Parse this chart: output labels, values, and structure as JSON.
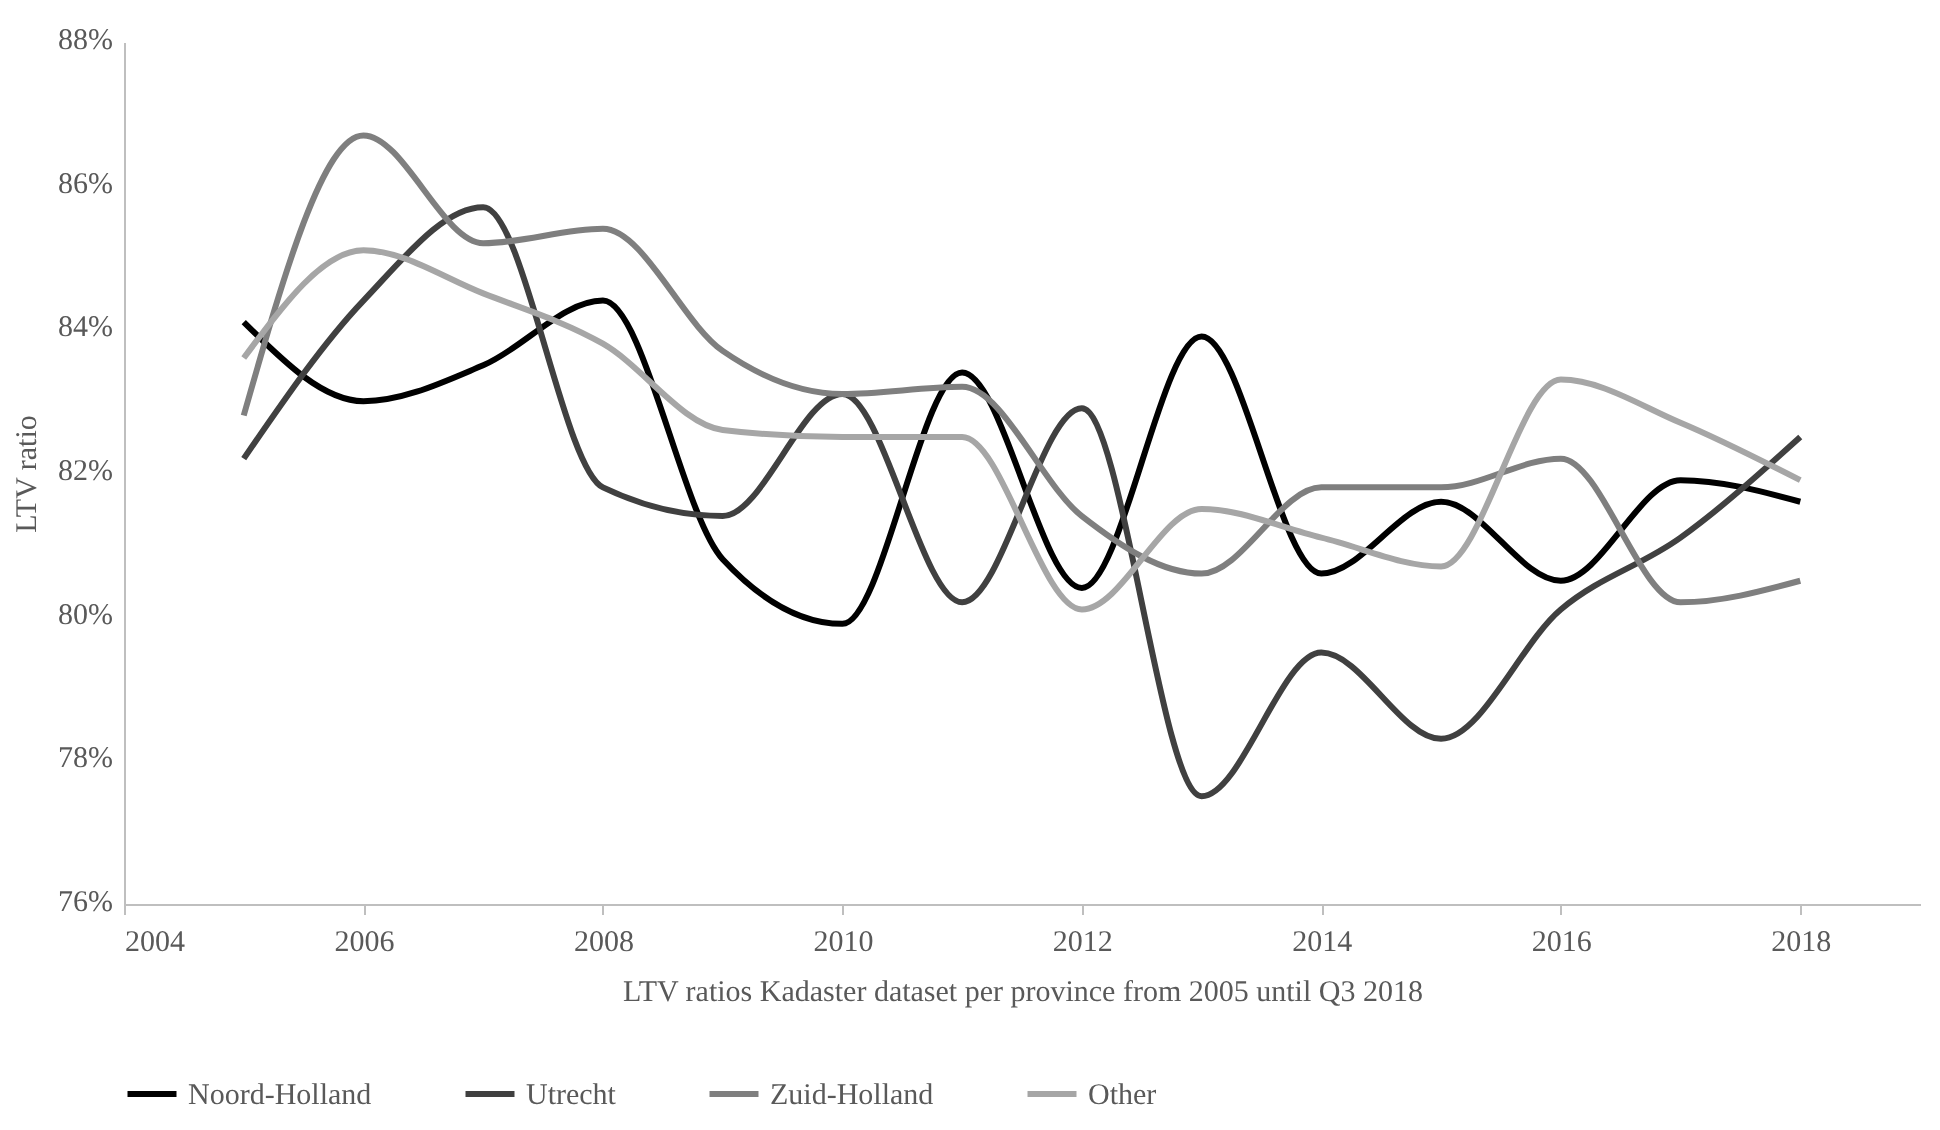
{
  "chart_data": {
    "type": "line",
    "ylabel": "LTV ratio",
    "xlabel": "LTV ratios Kadaster dataset per province from 2005 until Q3 2018",
    "x": [
      2005,
      2006,
      2007,
      2008,
      2009,
      2010,
      2011,
      2012,
      2013,
      2014,
      2015,
      2016,
      2017,
      2018
    ],
    "series": [
      {
        "name": "Noord-Holland",
        "color": "#000000",
        "values": [
          84.1,
          83.0,
          83.5,
          84.4,
          80.8,
          79.9,
          83.4,
          80.4,
          83.9,
          80.6,
          81.6,
          80.5,
          81.9,
          81.6
        ]
      },
      {
        "name": "Utrecht",
        "color": "#404040",
        "values": [
          82.2,
          84.4,
          85.7,
          81.8,
          81.4,
          83.1,
          80.2,
          82.9,
          77.5,
          79.5,
          78.3,
          80.1,
          81.1,
          82.5
        ]
      },
      {
        "name": "Zuid-Holland",
        "color": "#7f7f7f",
        "values": [
          82.8,
          86.7,
          85.2,
          85.4,
          83.7,
          83.1,
          83.2,
          81.4,
          80.6,
          81.8,
          81.8,
          82.2,
          80.2,
          80.5
        ]
      },
      {
        "name": "Other",
        "color": "#a6a6a6",
        "values": [
          83.6,
          85.1,
          84.5,
          83.8,
          82.6,
          82.5,
          82.5,
          80.1,
          81.5,
          81.1,
          80.7,
          83.3,
          82.7,
          81.9
        ]
      }
    ],
    "xlim": [
      2004,
      2019
    ],
    "xticks": [
      2004,
      2006,
      2008,
      2010,
      2012,
      2014,
      2016,
      2018
    ],
    "ylim": [
      76,
      88
    ],
    "yticks": [
      {
        "value": 76,
        "label": "76%"
      },
      {
        "value": 78,
        "label": "78%"
      },
      {
        "value": 80,
        "label": "80%"
      },
      {
        "value": 82,
        "label": "82%"
      },
      {
        "value": 84,
        "label": "84%"
      },
      {
        "value": 86,
        "label": "86%"
      },
      {
        "value": 88,
        "label": "88%"
      }
    ],
    "grid": false,
    "legend": "bottom",
    "marker": "none",
    "line_style": "solid"
  }
}
